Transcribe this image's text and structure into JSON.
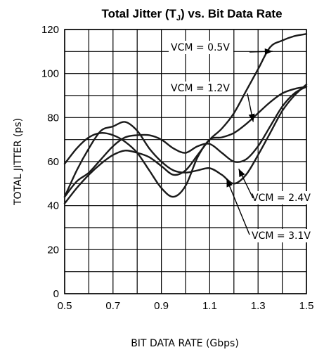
{
  "chart_data": {
    "type": "line",
    "title_main": "Total Jitter (T",
    "title_sub": "J",
    "title_rest": ") vs. Bit Data Rate",
    "xlabel": "BIT DATA RATE (Gbps)",
    "ylabel": "TOTAL JITTER (ps)",
    "xlim": [
      0.5,
      1.5
    ],
    "ylim": [
      0,
      120
    ],
    "xticks": [
      "0.5",
      "0.7",
      "0.9",
      "1.1",
      "1.3",
      "1.5"
    ],
    "xtick_values": [
      0.5,
      0.7,
      0.9,
      1.1,
      1.3,
      1.5
    ],
    "yticks": [
      "0",
      "20",
      "40",
      "60",
      "80",
      "100",
      "120"
    ],
    "ytick_values": [
      0,
      20,
      40,
      60,
      80,
      100,
      120
    ],
    "grid": true,
    "series": [
      {
        "name": "VCM = 0.5V",
        "x": [
          0.5,
          0.55,
          0.6,
          0.65,
          0.7,
          0.75,
          0.8,
          0.85,
          0.9,
          0.95,
          1.0,
          1.05,
          1.1,
          1.15,
          1.2,
          1.25,
          1.3,
          1.35,
          1.4,
          1.45,
          1.5
        ],
        "y": [
          41,
          48,
          54,
          59,
          63,
          65,
          64,
          62,
          58,
          54,
          56,
          63,
          70,
          75,
          82,
          92,
          102,
          112,
          115,
          117,
          118
        ]
      },
      {
        "name": "VCM = 1.2V",
        "x": [
          0.5,
          0.55,
          0.6,
          0.65,
          0.7,
          0.75,
          0.8,
          0.85,
          0.9,
          0.95,
          1.0,
          1.05,
          1.1,
          1.15,
          1.2,
          1.25,
          1.3,
          1.35,
          1.4,
          1.45,
          1.5
        ],
        "y": [
          59,
          66,
          71,
          73,
          72,
          69,
          64,
          56,
          48,
          44,
          49,
          62,
          70,
          71,
          73,
          77,
          82,
          87,
          91,
          93,
          94
        ]
      },
      {
        "name": "VCM = 2.4V",
        "x": [
          0.5,
          0.55,
          0.6,
          0.65,
          0.7,
          0.75,
          0.8,
          0.85,
          0.9,
          0.95,
          1.0,
          1.05,
          1.1,
          1.15,
          1.2,
          1.25,
          1.3,
          1.35,
          1.4,
          1.45,
          1.5
        ],
        "y": [
          44,
          56,
          66,
          74,
          76,
          78,
          74,
          66,
          60,
          56,
          55,
          56,
          57,
          54,
          50,
          54,
          63,
          73,
          83,
          90,
          95
        ]
      },
      {
        "name": "VCM = 3.1V",
        "x": [
          0.5,
          0.55,
          0.6,
          0.65,
          0.7,
          0.75,
          0.8,
          0.85,
          0.9,
          0.95,
          1.0,
          1.05,
          1.1,
          1.15,
          1.2,
          1.25,
          1.3,
          1.35,
          1.4,
          1.45,
          1.5
        ],
        "y": [
          44,
          51,
          55,
          61,
          67,
          71,
          72,
          72,
          70,
          66,
          64,
          67,
          68,
          64,
          60,
          61,
          67,
          76,
          85,
          91,
          94
        ]
      }
    ],
    "annotations": [
      {
        "text": "VCM = 0.5V",
        "series": 0
      },
      {
        "text": "VCM = 1.2V",
        "series": 1
      },
      {
        "text": "VCM = 2.4V",
        "series": 2
      },
      {
        "text": "VCM = 3.1V",
        "series": 3
      }
    ]
  }
}
